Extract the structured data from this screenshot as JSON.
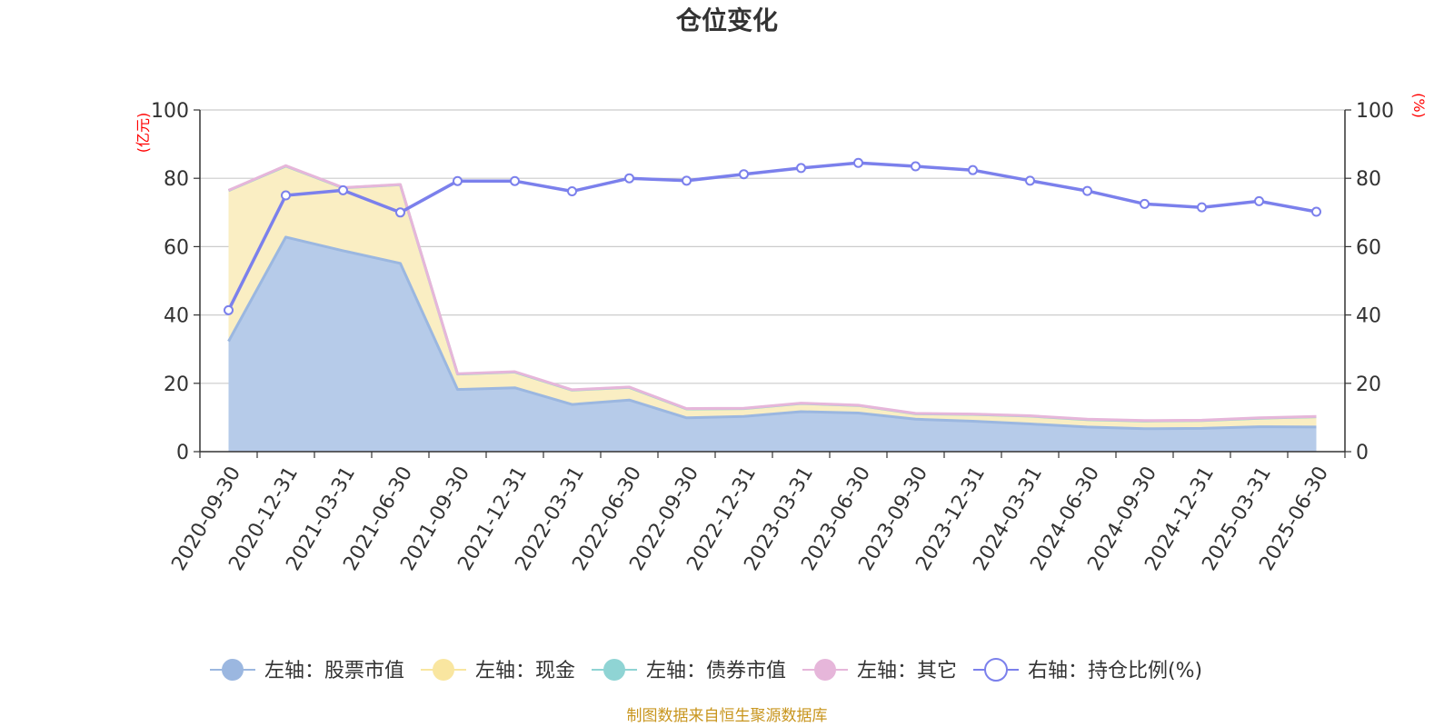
{
  "chart_data": {
    "type": "area",
    "title": "仓位变化",
    "categories": [
      "2020-09-30",
      "2020-12-31",
      "2021-03-31",
      "2021-06-30",
      "2021-09-30",
      "2021-12-31",
      "2022-03-31",
      "2022-06-30",
      "2022-09-30",
      "2022-12-31",
      "2023-03-31",
      "2023-06-30",
      "2023-09-30",
      "2023-12-31",
      "2024-03-31",
      "2024-06-30",
      "2024-09-30",
      "2024-12-31",
      "2025-03-31",
      "2025-06-30"
    ],
    "y_left": {
      "unit": "(亿元)",
      "ylim": [
        0,
        100
      ],
      "ticks": [
        0,
        20,
        40,
        60,
        80,
        100
      ]
    },
    "y_right": {
      "unit": "(%)",
      "ylim": [
        0,
        100
      ],
      "ticks": [
        0,
        20,
        40,
        60,
        80,
        100
      ]
    },
    "series": [
      {
        "name": "左轴：股票市值",
        "axis": "left",
        "kind": "stacked-area",
        "color": "#9bb7e0",
        "fill": "#b6cbe9",
        "values": [
          32.3,
          62.8,
          58.8,
          55.1,
          18.2,
          18.7,
          13.8,
          15.1,
          9.9,
          10.3,
          11.7,
          11.3,
          9.5,
          8.9,
          8.1,
          7.2,
          6.7,
          6.8,
          7.3,
          7.2
        ]
      },
      {
        "name": "左轴：现金",
        "axis": "left",
        "kind": "stacked-area",
        "color": "#f9e6a0",
        "fill": "#faeec3",
        "values": [
          44.1,
          20.8,
          18.4,
          23.0,
          4.5,
          4.6,
          4.2,
          3.7,
          2.6,
          2.3,
          2.4,
          2.2,
          1.6,
          2.0,
          2.3,
          2.2,
          2.3,
          2.3,
          2.5,
          3.0
        ]
      },
      {
        "name": "左轴：债券市值",
        "axis": "left",
        "kind": "stacked-area",
        "color": "#8fd4d4",
        "fill": "#bfe6e6",
        "values": [
          0,
          0,
          0,
          0,
          0,
          0,
          0,
          0,
          0,
          0,
          0,
          0,
          0,
          0,
          0,
          0,
          0,
          0,
          0,
          0
        ]
      },
      {
        "name": "左轴：其它",
        "axis": "left",
        "kind": "stacked-area",
        "color": "#e6b6da",
        "fill": "#f2d9ec",
        "values": [
          0.1,
          0.1,
          0.1,
          0.1,
          0.1,
          0.1,
          0.1,
          0.1,
          0.1,
          0.1,
          0.1,
          0.1,
          0.1,
          0.1,
          0.1,
          0.1,
          0.1,
          0.1,
          0.1,
          0.1
        ]
      },
      {
        "name": "右轴：持仓比例(%)",
        "axis": "right",
        "kind": "line",
        "color": "#7b80ec",
        "values": [
          41.4,
          75.0,
          76.5,
          70.0,
          79.2,
          79.2,
          76.2,
          80.0,
          79.3,
          81.2,
          83.0,
          84.5,
          83.5,
          82.4,
          79.3,
          76.3,
          72.5,
          71.5,
          73.3,
          70.2
        ]
      }
    ],
    "grid": true,
    "legend": "bottom-center",
    "source": "制图数据来自恒生聚源数据库"
  }
}
